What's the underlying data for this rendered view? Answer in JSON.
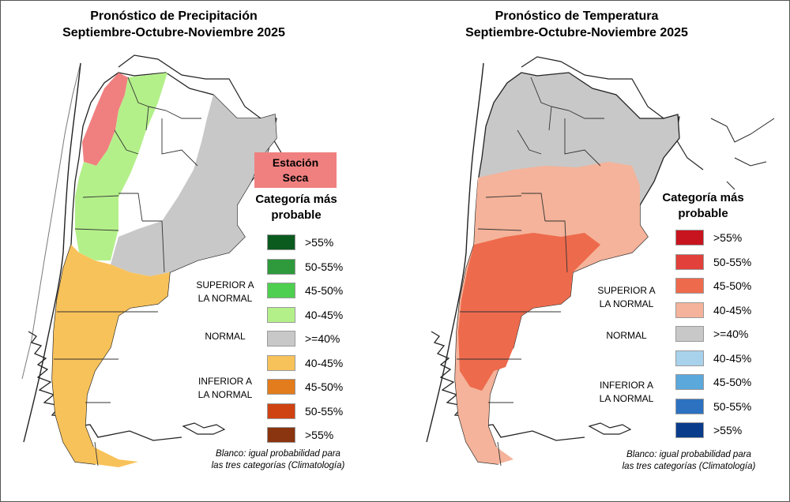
{
  "precipitation": {
    "title_line1": "Pronóstico de Precipitación",
    "title_line2": "Septiembre-Octubre-Noviembre 2025",
    "dry_season_line1": "Estación",
    "dry_season_line2": "Seca",
    "category_line1": "Categoría más",
    "category_line2": "probable",
    "groups": {
      "superior_line1": "SUPERIOR A",
      "superior_line2": "LA NORMAL",
      "normal": "NORMAL",
      "inferior_line1": "INFERIOR A",
      "inferior_line2": "LA NORMAL"
    },
    "legend": [
      {
        "label": ">55%",
        "color": "#0b5a1e"
      },
      {
        "label": "50-55%",
        "color": "#2e9a3c"
      },
      {
        "label": "45-50%",
        "color": "#4fcf50"
      },
      {
        "label": "40-45%",
        "color": "#b4f08a"
      },
      {
        "label": ">=40%",
        "color": "#c8c8c8"
      },
      {
        "label": "40-45%",
        "color": "#f8c25a"
      },
      {
        "label": "45-50%",
        "color": "#e27c1c"
      },
      {
        "label": "50-55%",
        "color": "#cf4211"
      },
      {
        "label": ">55%",
        "color": "#8a3410"
      }
    ],
    "note_line1": "Blanco: igual probabilidad para",
    "note_line2": "las tres categorías (Climatología)"
  },
  "temperature": {
    "title_line1": "Pronóstico de Temperatura",
    "title_line2": "Septiembre-Octubre-Noviembre 2025",
    "category_line1": "Categoría más",
    "category_line2": "probable",
    "groups": {
      "superior_line1": "SUPERIOR A",
      "superior_line2": "LA NORMAL",
      "normal": "NORMAL",
      "inferior_line1": "INFERIOR A",
      "inferior_line2": "LA NORMAL"
    },
    "legend": [
      {
        "label": ">55%",
        "color": "#c8141e"
      },
      {
        "label": "50-55%",
        "color": "#e2403a"
      },
      {
        "label": "45-50%",
        "color": "#ee6a4c"
      },
      {
        "label": "40-45%",
        "color": "#f4b39a"
      },
      {
        "label": ">=40%",
        "color": "#c8c8c8"
      },
      {
        "label": "40-45%",
        "color": "#a8d2ec"
      },
      {
        "label": "45-50%",
        "color": "#5aa8dc"
      },
      {
        "label": "50-55%",
        "color": "#2c72c0"
      },
      {
        "label": ">55%",
        "color": "#0a3c8c"
      }
    ],
    "note_line1": "Blanco: igual probabilidad para",
    "note_line2": "las tres categorías (Climatología)"
  }
}
